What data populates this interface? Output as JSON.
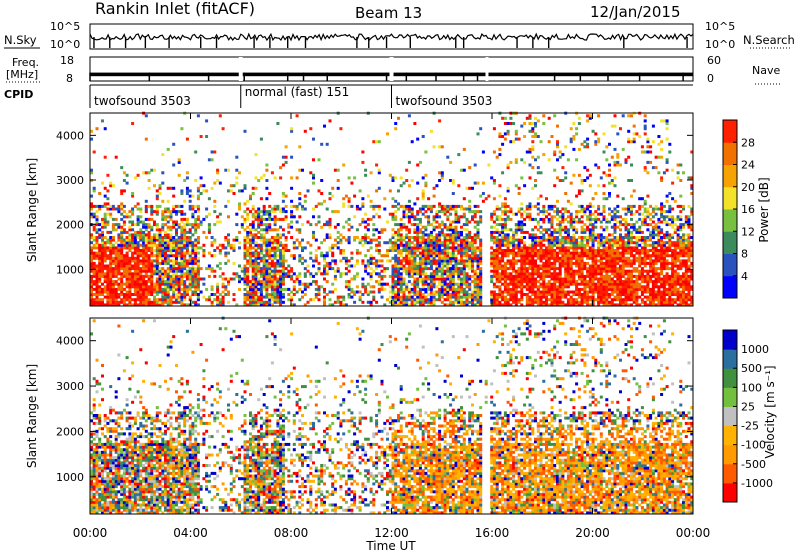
{
  "header": {
    "title": "Rankin Inlet (fitACF)",
    "beam": "Beam 13",
    "date": "12/Jan/2015"
  },
  "colors": {
    "power_scale": [
      "#0000ff",
      "#2a52be",
      "#3c8b5a",
      "#77c040",
      "#f3e12a",
      "#f5a300",
      "#f07000",
      "#ff2000",
      "#ff0000"
    ],
    "velocity_scale": [
      "#ff0000",
      "#ff5a00",
      "#ff9a00",
      "#ffb200",
      "#c0c0c0",
      "#73c040",
      "#409040",
      "#2a6fa0",
      "#0000cc"
    ]
  },
  "chart_data": [
    {
      "type": "line",
      "name": "noise-panel",
      "left_label": "N.Sky",
      "right_label": "N.Search",
      "left_ticks": [
        "10^5",
        "10^0"
      ],
      "right_ticks": [
        "10^5",
        "10^0"
      ],
      "y_scale": "log",
      "ylim": [
        1,
        100000
      ]
    },
    {
      "type": "line",
      "name": "freq-panel",
      "left_label_top": "Freq.",
      "left_label_bottom": "[MHz]",
      "right_label": "Nave",
      "left_ticks": [
        "18",
        "8"
      ],
      "right_ticks": [
        "60",
        "0"
      ],
      "ylim": [
        8,
        18
      ]
    },
    {
      "type": "table",
      "name": "cpid-panel",
      "label": "CPID",
      "segments": [
        {
          "label": "twofsound 3503",
          "start": "00:00",
          "end": "06:00"
        },
        {
          "label": "normal (fast) 151",
          "start": "06:00",
          "end": "12:00"
        },
        {
          "label": "twofsound 3503",
          "start": "12:00",
          "end": "24:00"
        }
      ]
    },
    {
      "type": "heatmap",
      "name": "power-panel",
      "ylabel": "Slant Range [km]",
      "xlabel": "Time UT",
      "xlim": [
        "00:00",
        "24:00"
      ],
      "ylim": [
        180,
        4500
      ],
      "y_ticks": [
        "1000",
        "2000",
        "3000",
        "4000"
      ],
      "x_ticks": [
        "00:00",
        "04:00",
        "08:00",
        "12:00",
        "16:00",
        "20:00",
        "00:00"
      ],
      "colorbar_label": "Power [dB]",
      "colorbar_ticks": [
        "4",
        "8",
        "12",
        "16",
        "20",
        "24",
        "28"
      ],
      "colorbar_range": [
        0,
        32
      ]
    },
    {
      "type": "heatmap",
      "name": "velocity-panel",
      "ylabel": "Slant Range [km]",
      "xlabel": "Time UT",
      "xlim": [
        "00:00",
        "24:00"
      ],
      "ylim": [
        180,
        4500
      ],
      "y_ticks": [
        "1000",
        "2000",
        "3000",
        "4000"
      ],
      "x_ticks": [
        "00:00",
        "04:00",
        "08:00",
        "12:00",
        "16:00",
        "20:00",
        "00:00"
      ],
      "colorbar_label": "Velocity [m s⁻¹]",
      "colorbar_ticks": [
        "1000",
        "500",
        "100",
        "25",
        "-25",
        "-100",
        "-500",
        "-1000"
      ]
    }
  ],
  "x_axis_title": "Time UT"
}
